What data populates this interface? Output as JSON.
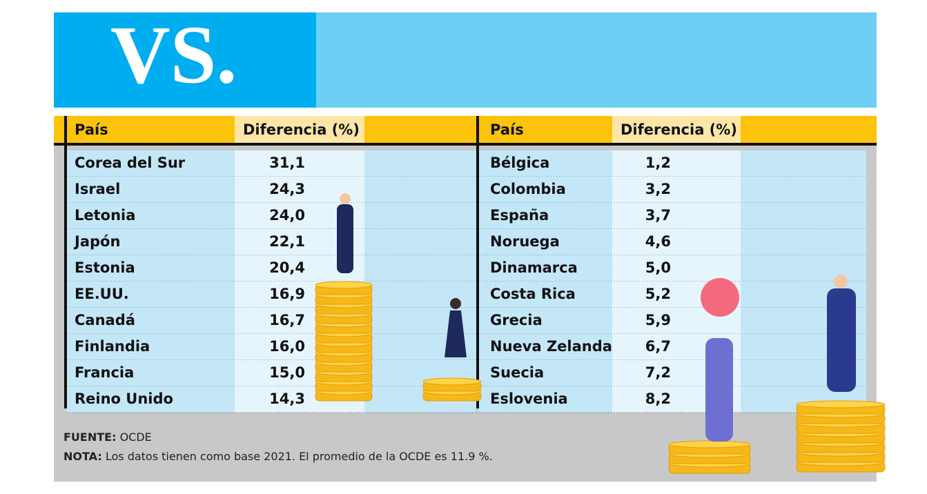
{
  "header": {
    "title": "VS."
  },
  "tables": [
    {
      "columns": [
        "País",
        "Diferencia (%)"
      ],
      "rows": [
        [
          "Corea del Sur",
          "31,1"
        ],
        [
          "Israel",
          "24,3"
        ],
        [
          "Letonia",
          "24,0"
        ],
        [
          "Japón",
          "22,1"
        ],
        [
          "Estonia",
          "20,4"
        ],
        [
          "EE.UU.",
          "16,9"
        ],
        [
          "Canadá",
          "16,7"
        ],
        [
          "Finlandia",
          "16,0"
        ],
        [
          "Francia",
          "15,0"
        ],
        [
          "Reino Unido",
          "14,3"
        ]
      ]
    },
    {
      "columns": [
        "País",
        "Diferencia (%)"
      ],
      "rows": [
        [
          "Bélgica",
          "1,2"
        ],
        [
          "Colombia",
          "3,2"
        ],
        [
          "España",
          "3,7"
        ],
        [
          "Noruega",
          "4,6"
        ],
        [
          "Dinamarca",
          "5,0"
        ],
        [
          "Costa Rica",
          "5,2"
        ],
        [
          "Grecia",
          "5,9"
        ],
        [
          "Nueva Zelanda",
          "6,7"
        ],
        [
          "Suecia",
          "7,2"
        ],
        [
          "Eslovenia",
          "8,2"
        ]
      ]
    }
  ],
  "footer": {
    "source_label": "FUENTE:",
    "source": "OCDE",
    "note_label": "NOTA:",
    "note": "Los datos tienen como base 2021. El promedio de la OCDE es 11.9 %."
  }
}
